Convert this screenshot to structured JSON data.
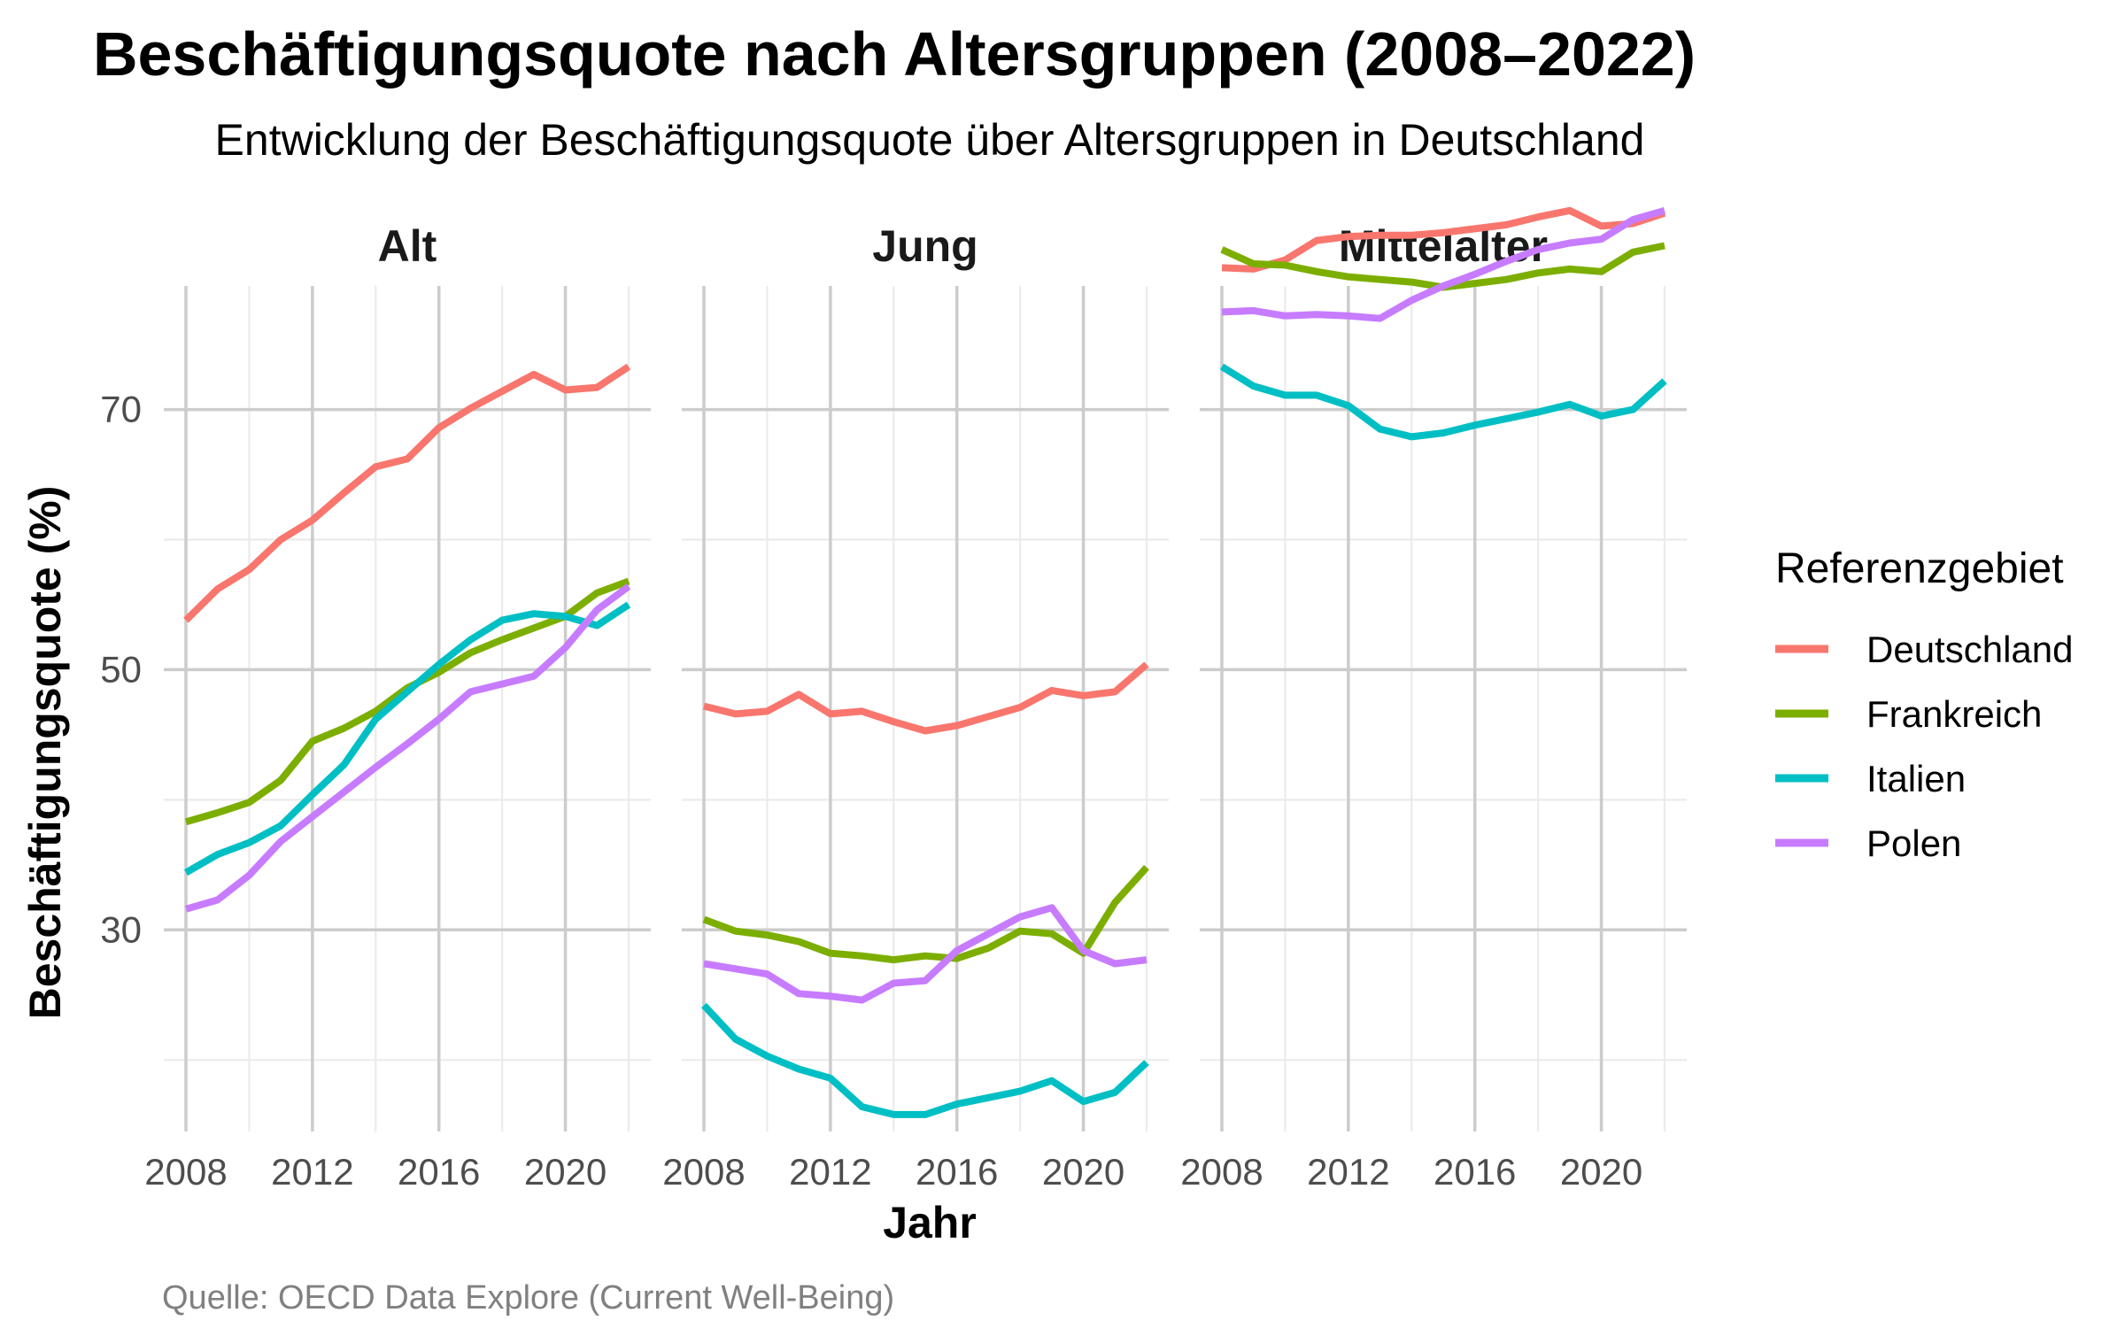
{
  "chart_data": {
    "type": "line",
    "title": "Beschäftigungsquote nach Altersgruppen (2008–2022)",
    "subtitle": "Entwicklung der Beschäftigungsquote über Altersgruppen in Deutschland",
    "xlabel": "Jahr",
    "ylabel": "Beschäftigungsquote (%)",
    "caption": "Quelle: OECD Data Explore (Current Well-Being)",
    "legend_title": "Referenzgebiet",
    "legend_position": "right",
    "grid": true,
    "xlim": [
      2008,
      2022
    ],
    "ylim": [
      14.5,
      79.5
    ],
    "x_ticks": [
      2008,
      2012,
      2016,
      2020
    ],
    "y_ticks": [
      30,
      50,
      70
    ],
    "x": [
      2008,
      2009,
      2010,
      2011,
      2012,
      2013,
      2014,
      2015,
      2016,
      2017,
      2018,
      2019,
      2020,
      2021,
      2022
    ],
    "series_colors": {
      "Deutschland": "#F8766D",
      "Frankreich": "#7CAE00",
      "Italien": "#00BFC4",
      "Polen": "#C77CFF"
    },
    "panels": [
      {
        "name": "Alt",
        "series": [
          {
            "name": "Deutschland",
            "values": [
              53.8,
              56.2,
              57.7,
              60.0,
              61.5,
              63.6,
              65.6,
              66.2,
              68.6,
              70.1,
              71.4,
              72.7,
              71.5,
              71.7,
              73.3
            ]
          },
          {
            "name": "Frankreich",
            "values": [
              38.3,
              39.0,
              39.8,
              41.5,
              44.5,
              45.5,
              46.8,
              48.6,
              49.8,
              51.3,
              52.3,
              53.2,
              54.1,
              55.9,
              56.8
            ]
          },
          {
            "name": "Italien",
            "values": [
              34.4,
              35.8,
              36.7,
              38.0,
              40.4,
              42.7,
              46.2,
              48.3,
              50.4,
              52.3,
              53.8,
              54.3,
              54.1,
              53.4,
              55.0
            ]
          },
          {
            "name": "Polen",
            "values": [
              31.6,
              32.3,
              34.2,
              36.8,
              38.7,
              40.6,
              42.5,
              44.3,
              46.2,
              48.3,
              48.9,
              49.5,
              51.7,
              54.6,
              56.4
            ]
          }
        ]
      },
      {
        "name": "Jung",
        "series": [
          {
            "name": "Deutschland",
            "values": [
              47.2,
              46.6,
              46.8,
              48.1,
              46.6,
              46.8,
              46.0,
              45.3,
              45.7,
              46.4,
              47.1,
              48.4,
              48.0,
              48.3,
              50.4
            ]
          },
          {
            "name": "Frankreich",
            "values": [
              30.8,
              29.9,
              29.6,
              29.1,
              28.2,
              28.0,
              27.7,
              28.0,
              27.8,
              28.6,
              29.9,
              29.7,
              28.2,
              32.1,
              34.8
            ]
          },
          {
            "name": "Italien",
            "values": [
              24.2,
              21.6,
              20.3,
              19.3,
              18.6,
              16.4,
              15.8,
              15.8,
              16.6,
              17.1,
              17.6,
              18.4,
              16.8,
              17.5,
              19.8
            ]
          },
          {
            "name": "Polen",
            "values": [
              27.4,
              27.0,
              26.6,
              25.1,
              24.9,
              24.6,
              25.9,
              26.1,
              28.4,
              29.7,
              31.0,
              31.7,
              28.4,
              27.4,
              27.7
            ]
          }
        ]
      },
      {
        "name": "Mittelalter",
        "series": [
          {
            "name": "Deutschland",
            "values": [
              80.9,
              80.8,
              81.5,
              83.0,
              83.3,
              83.4,
              83.4,
              83.6,
              83.9,
              84.2,
              84.8,
              85.3,
              84.1,
              84.3,
              85.1
            ]
          },
          {
            "name": "Frankreich",
            "values": [
              82.3,
              81.2,
              81.1,
              80.6,
              80.2,
              80.0,
              79.8,
              79.4,
              79.7,
              80.0,
              80.5,
              80.8,
              80.6,
              82.1,
              82.6
            ]
          },
          {
            "name": "Italien",
            "values": [
              73.3,
              71.8,
              71.1,
              71.1,
              70.3,
              68.5,
              67.9,
              68.2,
              68.8,
              69.3,
              69.8,
              70.4,
              69.5,
              70.0,
              72.2
            ]
          },
          {
            "name": "Polen",
            "values": [
              77.5,
              77.6,
              77.2,
              77.3,
              77.2,
              77.0,
              78.4,
              79.5,
              80.4,
              81.4,
              82.3,
              82.8,
              83.1,
              84.6,
              85.3
            ]
          }
        ]
      }
    ]
  }
}
